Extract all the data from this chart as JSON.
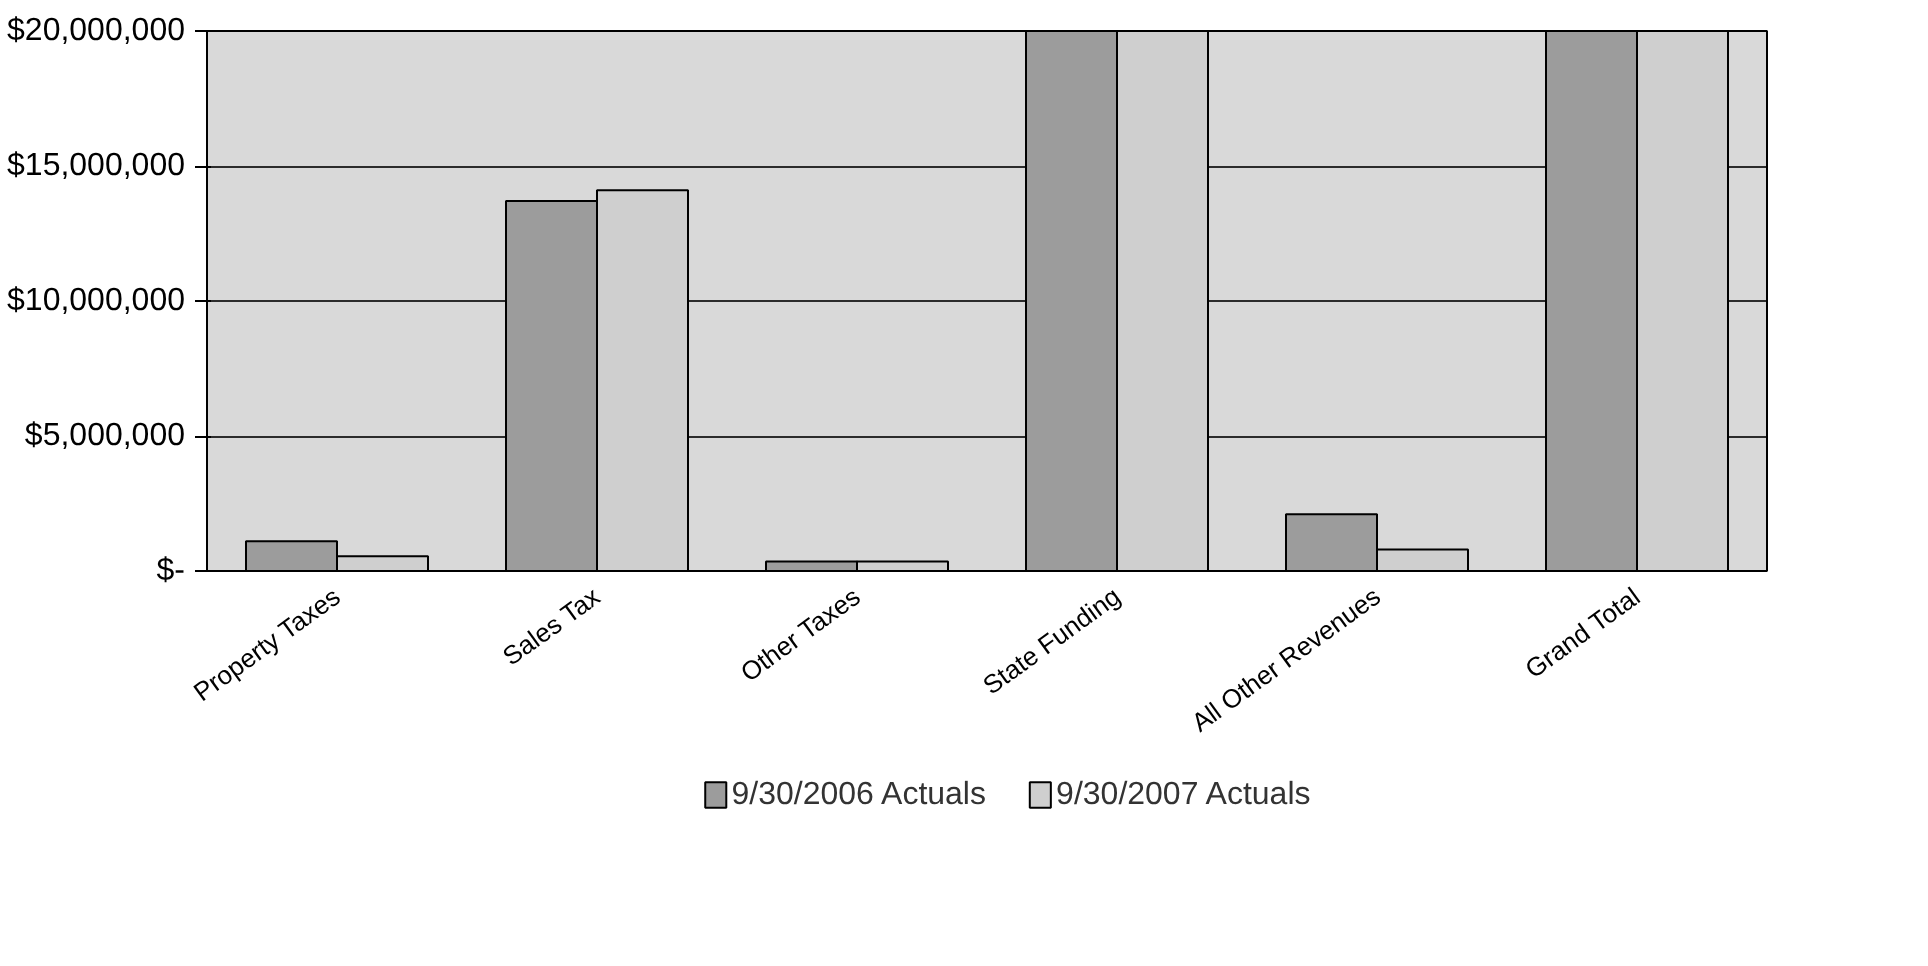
{
  "chart_data": {
    "type": "bar",
    "categories": [
      "Property Taxes",
      "Sales Tax",
      "Other Taxes",
      "State Funding",
      "All Other Revenues",
      "Grand Total"
    ],
    "series": [
      {
        "name": "9/30/2006 Actuals",
        "color": "#9c9c9c",
        "values": [
          1100000,
          13700000,
          350000,
          20000000,
          2100000,
          20000000
        ]
      },
      {
        "name": "9/30/2007 Actuals",
        "color": "#cfcfcf",
        "values": [
          550000,
          14100000,
          350000,
          20000000,
          800000,
          20000000
        ]
      }
    ],
    "ylim": [
      0,
      20000000
    ],
    "yticks": [
      {
        "value": 0,
        "label": "$-"
      },
      {
        "value": 5000000,
        "label": "$5,000,000"
      },
      {
        "value": 10000000,
        "label": "$10,000,000"
      },
      {
        "value": 15000000,
        "label": "$15,000,000"
      },
      {
        "value": 20000000,
        "label": "$20,000,000"
      }
    ],
    "grid": "y",
    "legend": "bottom"
  }
}
